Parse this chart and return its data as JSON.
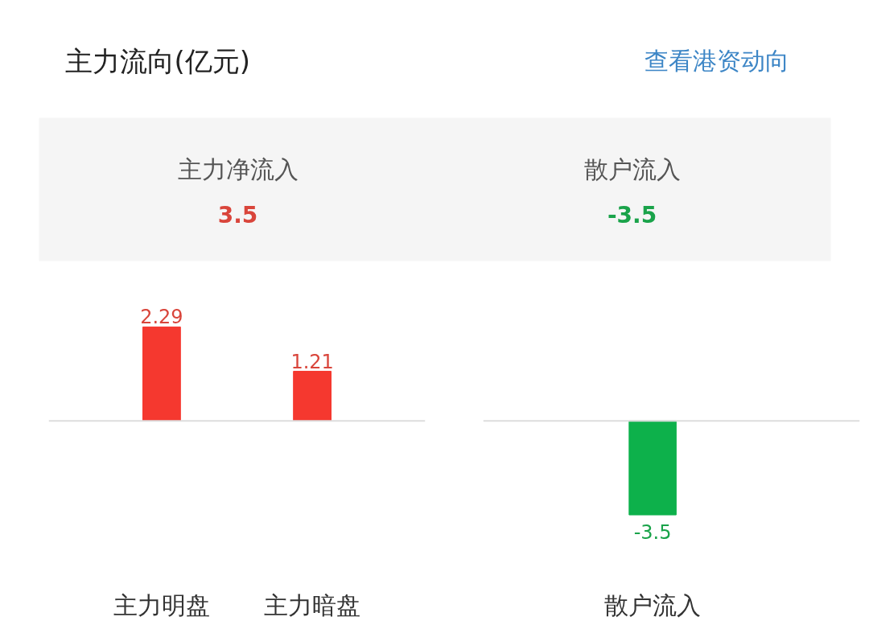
{
  "chart_data": [
    {
      "type": "other",
      "title": "主力流向(亿元)",
      "annotations": [
        "查看港资动向",
        "主力净流入",
        "3.5",
        "散户流入",
        "-3.5"
      ],
      "colors": [
        "#3d86c6",
        "#555555",
        "#d9453b",
        "#555555",
        "#1aa34a"
      ]
    },
    {
      "type": "bar",
      "categories": [
        "主力明盘",
        "主力暗盘"
      ],
      "values": [
        2.29,
        1.21
      ],
      "colors": [
        "#f5382f",
        "#f5382f"
      ],
      "data_labels": true,
      "tick_labels": "x"
    },
    {
      "type": "bar",
      "categories": [
        "散户流入"
      ],
      "values": [
        -3.5
      ],
      "colors": [
        "#0db14b"
      ],
      "data_labels": true,
      "tick_labels": "x"
    }
  ]
}
